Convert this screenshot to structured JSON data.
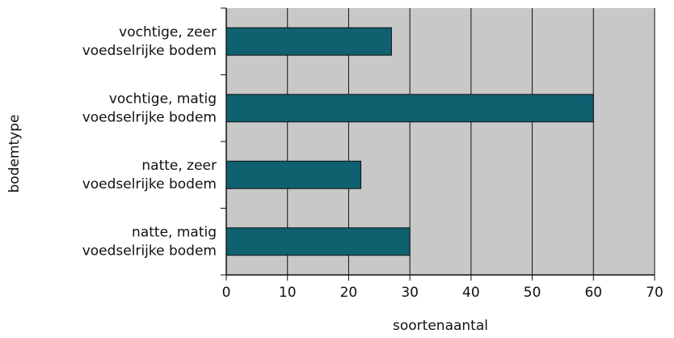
{
  "chart_data": {
    "type": "barh",
    "categories": [
      [
        "vochtige, zeer",
        "voedselrijke bodem"
      ],
      [
        "vochtige, matig",
        "voedselrijke bodem"
      ],
      [
        "natte, zeer",
        "voedselrijke bodem"
      ],
      [
        "natte, matig",
        "voedselrijke bodem"
      ]
    ],
    "values": [
      27,
      60,
      22,
      30
    ],
    "color": "#0f6170",
    "xlim": [
      0,
      70
    ],
    "xticks": [
      0,
      10,
      20,
      30,
      40,
      50,
      60,
      70
    ],
    "xlabel": "soortenaantal",
    "ylabel": "bodemtype",
    "grid": true,
    "background": "#c8c8c8"
  }
}
